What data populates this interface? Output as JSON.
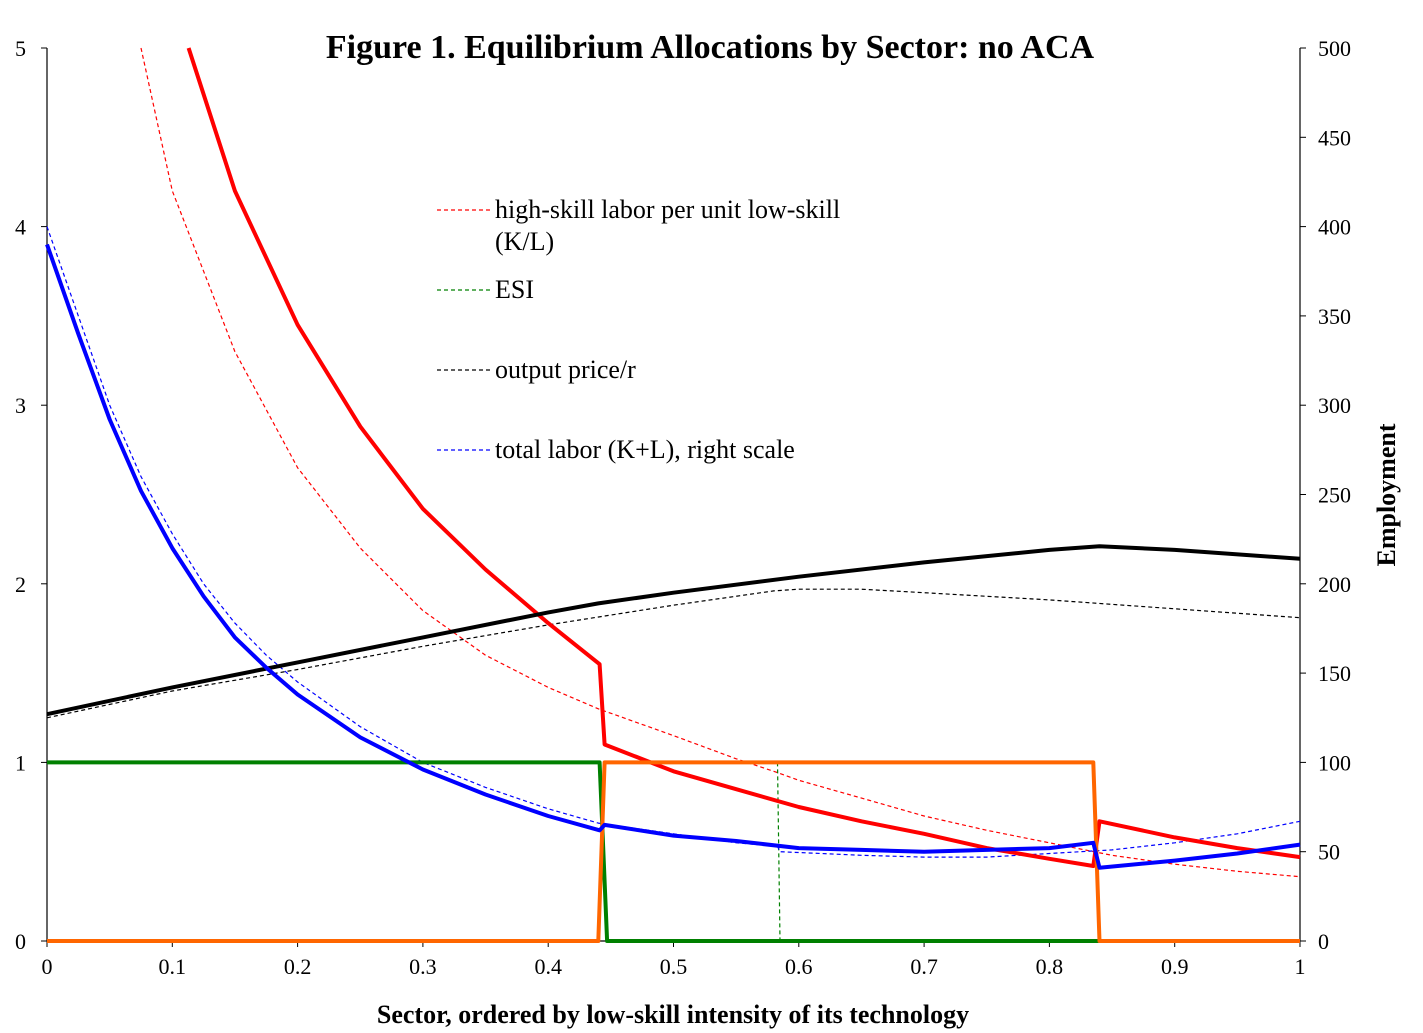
{
  "chart_data": {
    "type": "line",
    "title": "Figure 1.  Equilibrium Allocations by Sector: no ACA",
    "xlabel": "Sector, ordered by low-skill intensity of its technology",
    "ylabel_left": "",
    "ylabel_right": "Employment",
    "xlim": [
      0,
      1
    ],
    "ylim_left": [
      0,
      5
    ],
    "ylim_right": [
      0,
      500
    ],
    "x_ticks": [
      "0",
      "0.1",
      "0.2",
      "0.3",
      "0.4",
      "0.5",
      "0.6",
      "0.7",
      "0.8",
      "0.9",
      "1"
    ],
    "y_left_ticks": [
      "0",
      "1",
      "2",
      "3",
      "4",
      "5"
    ],
    "y_right_ticks": [
      "0",
      "50",
      "100",
      "150",
      "200",
      "250",
      "300",
      "350",
      "400",
      "450",
      "500"
    ],
    "grid": false,
    "legend_position": "upper-center",
    "legend": [
      {
        "label_lines": [
          "high-skill labor per unit low-skill",
          "(K/L)"
        ],
        "color": "#ff0000"
      },
      {
        "label_lines": [
          "ESI"
        ],
        "color": "#008000"
      },
      {
        "label_lines": [
          "output price/r"
        ],
        "color": "#000000"
      },
      {
        "label_lines": [
          "total labor (K+L), right scale"
        ],
        "color": "#0000ff"
      }
    ],
    "series": [
      {
        "id": "kl_aca",
        "axis": "left",
        "color": "#ff0000",
        "style": "dashed",
        "points": [
          [
            0.075,
            5.0
          ],
          [
            0.1,
            4.2
          ],
          [
            0.15,
            3.3
          ],
          [
            0.2,
            2.65
          ],
          [
            0.25,
            2.2
          ],
          [
            0.3,
            1.85
          ],
          [
            0.35,
            1.6
          ],
          [
            0.4,
            1.42
          ],
          [
            0.44,
            1.3
          ],
          [
            0.5,
            1.15
          ],
          [
            0.55,
            1.02
          ],
          [
            0.58,
            0.95
          ],
          [
            0.6,
            0.9
          ],
          [
            0.65,
            0.8
          ],
          [
            0.7,
            0.7
          ],
          [
            0.75,
            0.62
          ],
          [
            0.8,
            0.55
          ],
          [
            0.85,
            0.48
          ],
          [
            0.9,
            0.43
          ],
          [
            0.95,
            0.39
          ],
          [
            1.0,
            0.36
          ]
        ]
      },
      {
        "id": "esi_aca",
        "axis": "left",
        "color": "#008000",
        "style": "dashed",
        "points": [
          [
            0.583,
            1.0
          ],
          [
            0.585,
            0.0
          ]
        ]
      },
      {
        "id": "price_aca",
        "axis": "left",
        "color": "#000000",
        "style": "dashed",
        "points": [
          [
            0,
            1.25
          ],
          [
            0.1,
            1.4
          ],
          [
            0.2,
            1.52
          ],
          [
            0.3,
            1.65
          ],
          [
            0.4,
            1.77
          ],
          [
            0.5,
            1.88
          ],
          [
            0.58,
            1.96
          ],
          [
            0.6,
            1.97
          ],
          [
            0.65,
            1.97
          ],
          [
            0.7,
            1.95
          ],
          [
            0.8,
            1.91
          ],
          [
            0.9,
            1.86
          ],
          [
            1.0,
            1.81
          ]
        ]
      },
      {
        "id": "labor_aca",
        "axis": "right",
        "color": "#0000ff",
        "style": "dashed",
        "points": [
          [
            0,
            400
          ],
          [
            0.025,
            350
          ],
          [
            0.05,
            300
          ],
          [
            0.075,
            260
          ],
          [
            0.1,
            228
          ],
          [
            0.125,
            200
          ],
          [
            0.15,
            178
          ],
          [
            0.175,
            160
          ],
          [
            0.2,
            145
          ],
          [
            0.25,
            120
          ],
          [
            0.3,
            100
          ],
          [
            0.35,
            86
          ],
          [
            0.4,
            74
          ],
          [
            0.44,
            66
          ],
          [
            0.5,
            60
          ],
          [
            0.55,
            55
          ],
          [
            0.583,
            53
          ],
          [
            0.585,
            50
          ],
          [
            0.65,
            48
          ],
          [
            0.7,
            47
          ],
          [
            0.75,
            47
          ],
          [
            0.8,
            49
          ],
          [
            0.85,
            51
          ],
          [
            0.9,
            55
          ],
          [
            0.95,
            60
          ],
          [
            1.0,
            67
          ]
        ]
      },
      {
        "id": "kl_noaca",
        "axis": "left",
        "color": "#ff0000",
        "style": "solid",
        "points": [
          [
            0.113,
            5.0
          ],
          [
            0.15,
            4.2
          ],
          [
            0.2,
            3.45
          ],
          [
            0.25,
            2.88
          ],
          [
            0.3,
            2.42
          ],
          [
            0.35,
            2.08
          ],
          [
            0.4,
            1.78
          ],
          [
            0.441,
            1.55
          ],
          [
            0.445,
            1.1
          ],
          [
            0.5,
            0.95
          ],
          [
            0.55,
            0.85
          ],
          [
            0.6,
            0.75
          ],
          [
            0.65,
            0.67
          ],
          [
            0.7,
            0.6
          ],
          [
            0.75,
            0.52
          ],
          [
            0.8,
            0.46
          ],
          [
            0.835,
            0.42
          ],
          [
            0.84,
            0.67
          ],
          [
            0.9,
            0.58
          ],
          [
            0.95,
            0.52
          ],
          [
            1.0,
            0.47
          ]
        ]
      },
      {
        "id": "esi_noaca",
        "axis": "left",
        "color": "#008000",
        "style": "solid",
        "points": [
          [
            0,
            1.0
          ],
          [
            0.441,
            1.0
          ],
          [
            0.447,
            0.0
          ],
          [
            1.0,
            0.0
          ]
        ]
      },
      {
        "id": "esi_orange",
        "axis": "left",
        "color": "#ff6600",
        "style": "solid",
        "points": [
          [
            0,
            0.0
          ],
          [
            0.44,
            0.0
          ],
          [
            0.445,
            1.0
          ],
          [
            0.835,
            1.0
          ],
          [
            0.84,
            0.0
          ],
          [
            1.0,
            0.0
          ]
        ]
      },
      {
        "id": "price_noaca",
        "axis": "left",
        "color": "#000000",
        "style": "solid",
        "points": [
          [
            0,
            1.27
          ],
          [
            0.1,
            1.42
          ],
          [
            0.2,
            1.56
          ],
          [
            0.3,
            1.7
          ],
          [
            0.4,
            1.84
          ],
          [
            0.44,
            1.89
          ],
          [
            0.5,
            1.95
          ],
          [
            0.6,
            2.04
          ],
          [
            0.7,
            2.12
          ],
          [
            0.8,
            2.19
          ],
          [
            0.84,
            2.21
          ],
          [
            0.9,
            2.19
          ],
          [
            1.0,
            2.14
          ]
        ]
      },
      {
        "id": "labor_noaca",
        "axis": "right",
        "color": "#0000ff",
        "style": "solid",
        "points": [
          [
            0,
            390
          ],
          [
            0.025,
            340
          ],
          [
            0.05,
            292
          ],
          [
            0.075,
            252
          ],
          [
            0.1,
            220
          ],
          [
            0.125,
            193
          ],
          [
            0.15,
            170
          ],
          [
            0.175,
            153
          ],
          [
            0.2,
            138
          ],
          [
            0.25,
            114
          ],
          [
            0.3,
            96
          ],
          [
            0.35,
            82
          ],
          [
            0.4,
            70
          ],
          [
            0.441,
            62
          ],
          [
            0.445,
            65
          ],
          [
            0.5,
            59
          ],
          [
            0.55,
            56
          ],
          [
            0.6,
            52
          ],
          [
            0.65,
            51
          ],
          [
            0.7,
            50
          ],
          [
            0.75,
            51
          ],
          [
            0.8,
            52
          ],
          [
            0.835,
            55
          ],
          [
            0.84,
            41
          ],
          [
            0.9,
            45
          ],
          [
            0.95,
            49
          ],
          [
            1.0,
            54
          ]
        ]
      }
    ]
  }
}
